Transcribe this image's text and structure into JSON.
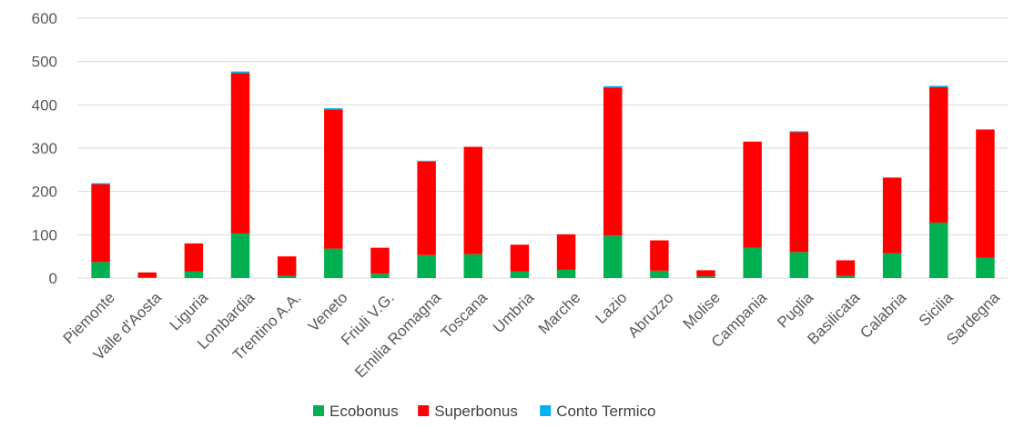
{
  "chart_data": {
    "type": "bar",
    "stacked": true,
    "title": "",
    "xlabel": "",
    "ylabel": "",
    "ylim": [
      0,
      600
    ],
    "yticks": [
      0,
      100,
      200,
      300,
      400,
      500,
      600
    ],
    "grid": true,
    "legend_position": "bottom",
    "categories": [
      "Piemonte",
      "Valle d'Aosta",
      "Liguria",
      "Lombardia",
      "Trentino A.A.",
      "Veneto",
      "Friuli V.G.",
      "Emilia Romagna",
      "Toscana",
      "Umbria",
      "Marche",
      "Lazio",
      "Abruzzo",
      "Molise",
      "Campania",
      "Puglia",
      "Basilicata",
      "Calabria",
      "Sicilia",
      "Sardegna"
    ],
    "series": [
      {
        "name": "Ecobonus",
        "color": "#00b050",
        "values": [
          37,
          2,
          15,
          103,
          5,
          68,
          10,
          53,
          55,
          15,
          19,
          98,
          17,
          4,
          70,
          60,
          5,
          57,
          128,
          47
        ]
      },
      {
        "name": "Superbonus",
        "color": "#ff0000",
        "values": [
          180,
          11,
          65,
          370,
          45,
          321,
          60,
          216,
          248,
          62,
          82,
          342,
          70,
          14,
          245,
          277,
          36,
          175,
          313,
          296
        ]
      },
      {
        "name": "Conto Termico",
        "color": "#00b0f0",
        "values": [
          2,
          0,
          0,
          4,
          0,
          3,
          0,
          2,
          0,
          0,
          0,
          3,
          0,
          0,
          0,
          2,
          0,
          0,
          3,
          0
        ]
      }
    ]
  }
}
